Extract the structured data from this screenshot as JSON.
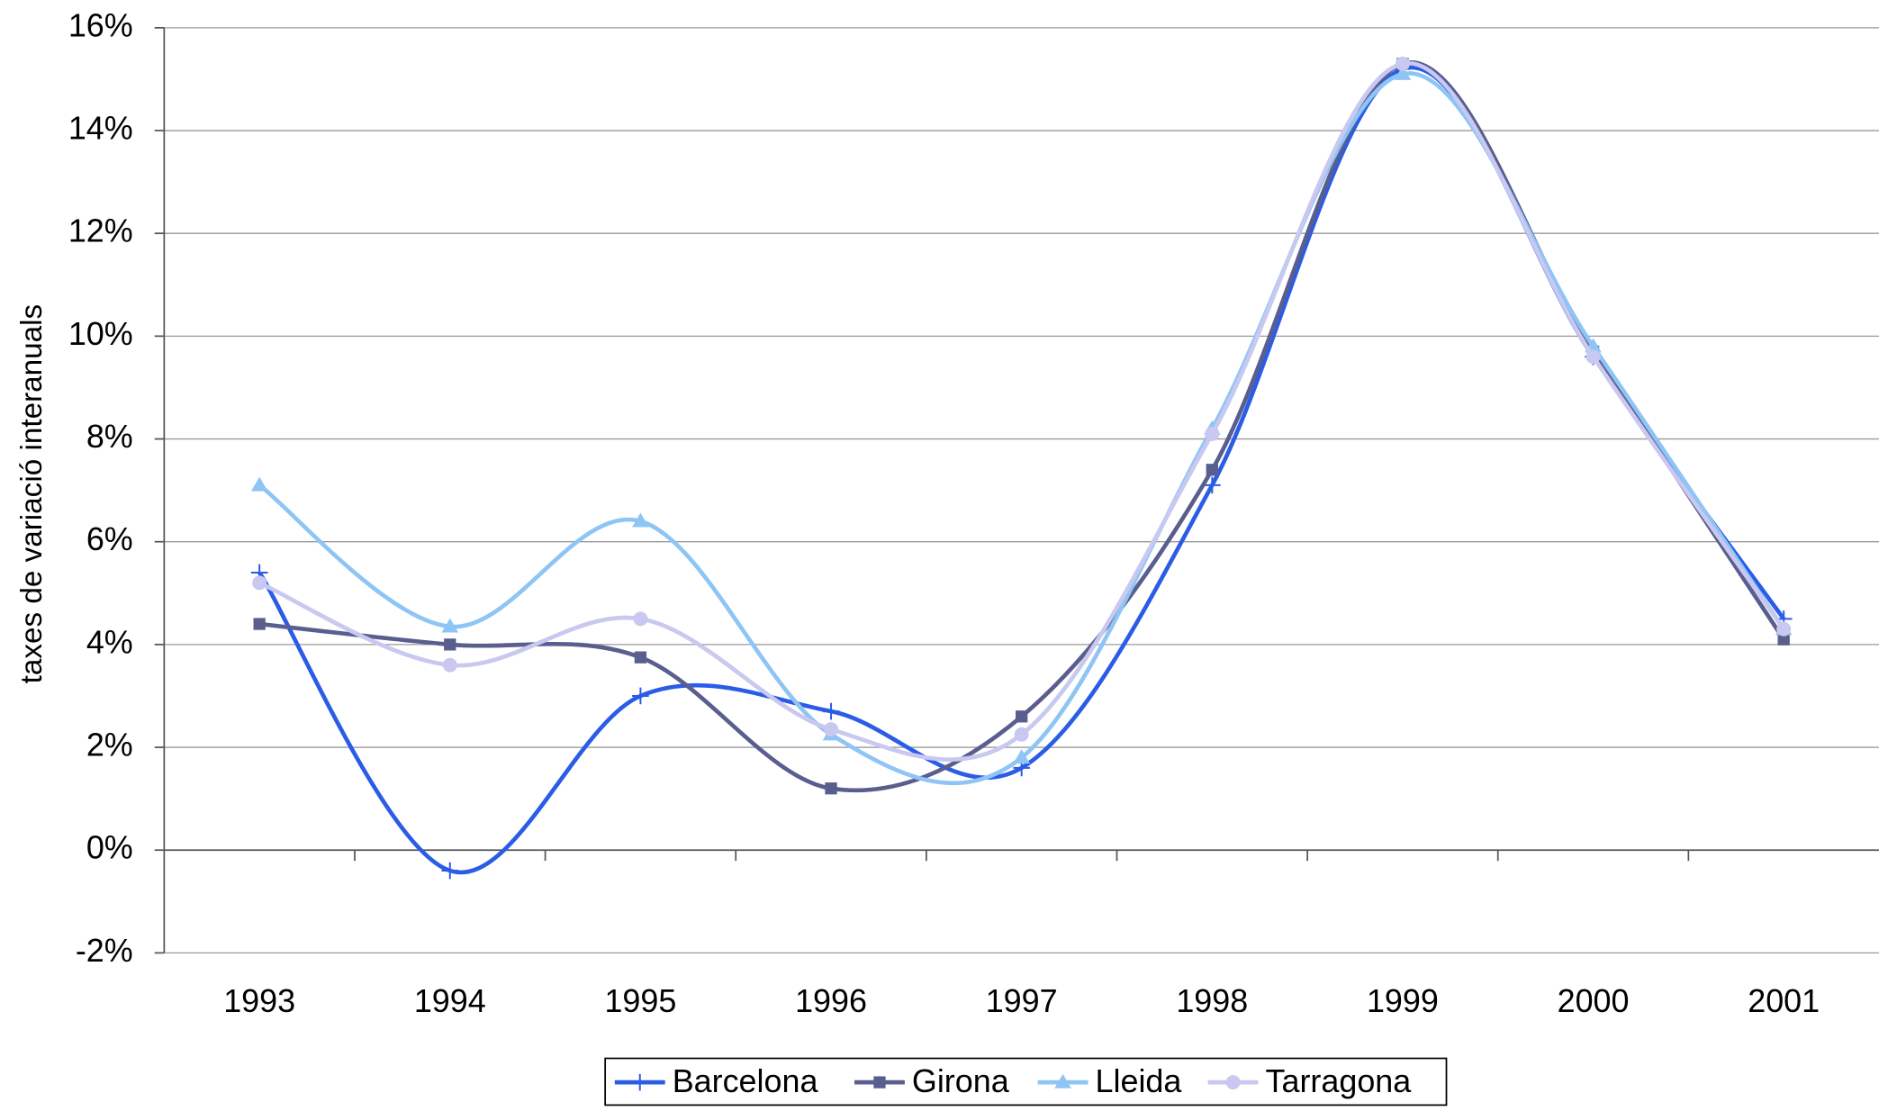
{
  "chart_data": {
    "type": "line",
    "y_label": "taxes de variació interanuals",
    "categories": [
      "1993",
      "1994",
      "1995",
      "1996",
      "1997",
      "1998",
      "1999",
      "2000",
      "2001"
    ],
    "series": [
      {
        "name": "Barcelona",
        "color": "#2a5ce6",
        "marker": "plus",
        "values": [
          5.4,
          -0.4,
          3.0,
          2.7,
          1.6,
          7.1,
          15.2,
          9.6,
          4.5
        ]
      },
      {
        "name": "Girona",
        "color": "#5a5e8e",
        "marker": "square",
        "values": [
          4.4,
          4.0,
          3.75,
          1.2,
          2.6,
          7.4,
          15.3,
          9.7,
          4.1
        ]
      },
      {
        "name": "Lleida",
        "color": "#8ec5f5",
        "marker": "triangle",
        "values": [
          7.1,
          4.35,
          6.4,
          2.25,
          1.8,
          8.2,
          15.1,
          9.8,
          4.3
        ]
      },
      {
        "name": "Tarragona",
        "color": "#c8c8f0",
        "marker": "circle",
        "values": [
          5.2,
          3.6,
          4.5,
          2.35,
          2.25,
          8.1,
          15.3,
          9.6,
          4.3
        ]
      }
    ],
    "ylim": [
      -2,
      16
    ],
    "yticks": [
      {
        "value": -2,
        "label": "-2%"
      },
      {
        "value": 0,
        "label": "0%"
      },
      {
        "value": 2,
        "label": "2%"
      },
      {
        "value": 4,
        "label": "4%"
      },
      {
        "value": 6,
        "label": "6%"
      },
      {
        "value": 8,
        "label": "8%"
      },
      {
        "value": 10,
        "label": "10%"
      },
      {
        "value": 12,
        "label": "12%"
      },
      {
        "value": 14,
        "label": "14%"
      },
      {
        "value": 16,
        "label": "16%"
      }
    ],
    "grid": true,
    "smooth": true,
    "legend": "bottom"
  }
}
